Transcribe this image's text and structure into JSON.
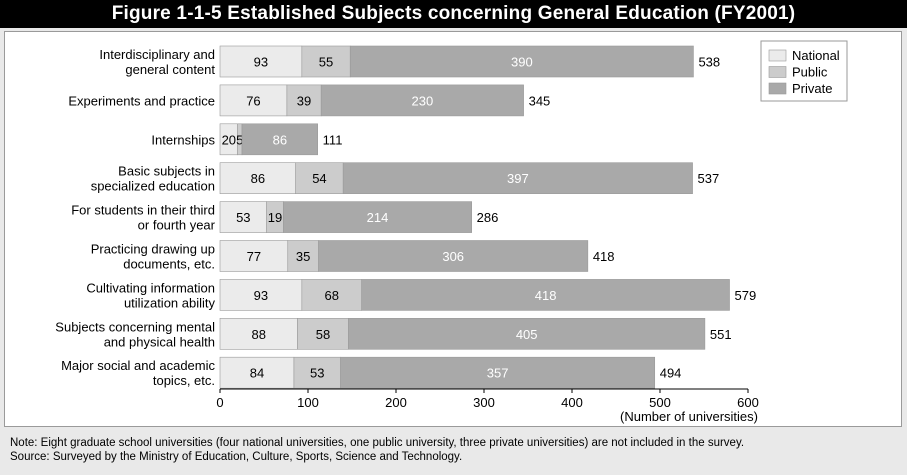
{
  "title": "Figure 1-1-5  Established Subjects concerning General Education (FY2001)",
  "chart_data": {
    "type": "bar",
    "orientation": "horizontal",
    "stacked": true,
    "categories": [
      [
        "Interdisciplinary and",
        "general content"
      ],
      [
        "Experiments and practice"
      ],
      [
        "Internships"
      ],
      [
        "Basic subjects in",
        "specialized education"
      ],
      [
        "For students in their third",
        "or fourth year"
      ],
      [
        "Practicing drawing up",
        "documents, etc."
      ],
      [
        "Cultivating information",
        "utilization ability"
      ],
      [
        "Subjects concerning mental",
        "and physical health"
      ],
      [
        "Major social and academic",
        "topics, etc."
      ]
    ],
    "series": [
      {
        "name": "National",
        "color": "#ebebeb",
        "values": [
          93,
          76,
          20,
          86,
          53,
          77,
          93,
          88,
          84
        ]
      },
      {
        "name": "Public",
        "color": "#cccccc",
        "values": [
          55,
          39,
          5,
          54,
          19,
          35,
          68,
          58,
          53
        ]
      },
      {
        "name": "Private",
        "color": "#a9a9a9",
        "values": [
          390,
          230,
          86,
          397,
          214,
          306,
          418,
          405,
          357
        ]
      }
    ],
    "totals": [
      538,
      345,
      111,
      537,
      286,
      418,
      579,
      551,
      494
    ],
    "xlim": [
      0,
      600
    ],
    "xticks": [
      0,
      100,
      200,
      300,
      400,
      500,
      600
    ],
    "xlabel": "(Number of universities)",
    "legend_position": "top-right",
    "grid": false
  },
  "notes": {
    "note": "Note: Eight graduate school universities (four national universities, one public university, three private universities) are not included in the survey.",
    "source": "Source: Surveyed by the Ministry of Education, Culture, Sports, Science and Technology."
  }
}
